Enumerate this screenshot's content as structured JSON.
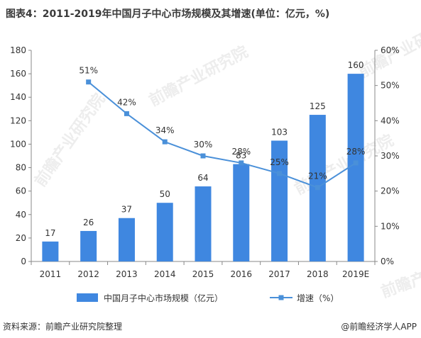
{
  "title": "图表4：2011-2019年中国月子中心市场规模及其增速(单位：亿元，%)",
  "source": "资料来源：前瞻产业研究院整理",
  "credit": "@前瞻经济学人APP",
  "watermark": "前瞻产业研究院",
  "chart_data": {
    "type": "bar",
    "categories": [
      "2011",
      "2012",
      "2013",
      "2014",
      "2015",
      "2016",
      "2017",
      "2018",
      "2019E"
    ],
    "series": [
      {
        "name": "中国月子中心市场规模（亿元）",
        "type": "bar",
        "axis": "left",
        "color": "#3f87e0",
        "values": [
          17,
          26,
          37,
          50,
          64,
          83,
          103,
          125,
          160
        ],
        "labels": [
          "17",
          "26",
          "37",
          "50",
          "64",
          "83",
          "103",
          "125",
          "160"
        ]
      },
      {
        "name": "增速（%）",
        "type": "line",
        "axis": "right",
        "color": "#4a90d9",
        "values": [
          null,
          51,
          42,
          34,
          30,
          28,
          25,
          21,
          28
        ],
        "labels": [
          "",
          "51%",
          "42%",
          "34%",
          "30%",
          "28%",
          "25%",
          "21%",
          "28%"
        ]
      }
    ],
    "y_left": {
      "min": 0,
      "max": 180,
      "ticks": [
        "0",
        "20",
        "40",
        "60",
        "80",
        "100",
        "120",
        "140",
        "160",
        "180"
      ]
    },
    "y_right": {
      "min": 0,
      "max": 60,
      "ticks": [
        "0%",
        "10%",
        "20%",
        "30%",
        "40%",
        "50%",
        "60%"
      ]
    },
    "grid": false,
    "legend_position": "bottom"
  }
}
